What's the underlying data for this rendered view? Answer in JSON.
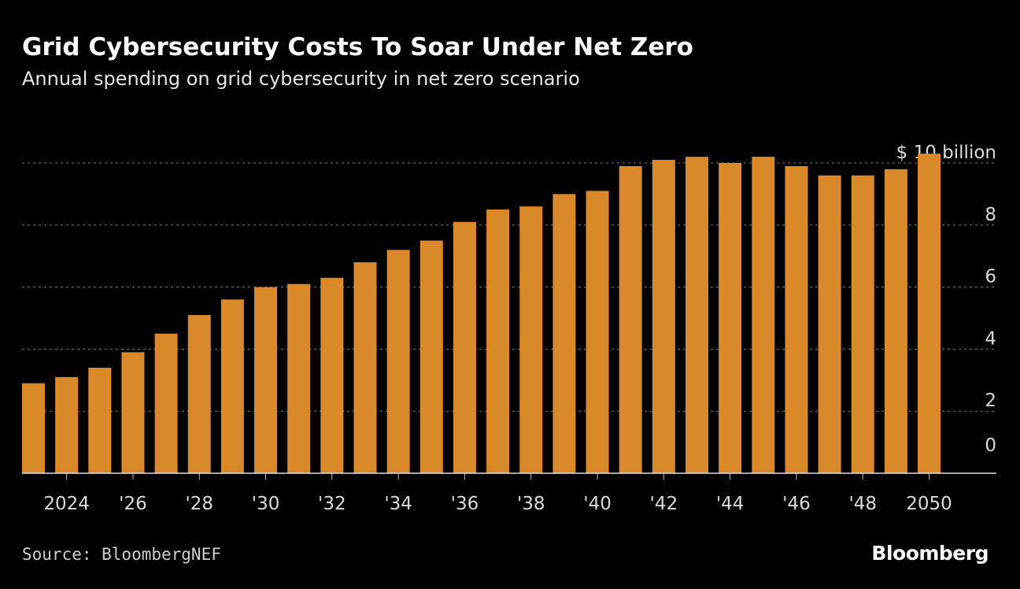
{
  "title": "Grid Cybersecurity Costs To Soar Under Net Zero",
  "subtitle": "Annual spending on grid cybersecurity in net zero scenario",
  "source": "Source: BloombergNEF",
  "logo": "Bloomberg",
  "colors": {
    "bar": "#d9892a",
    "background": "#000000",
    "grid": "#777777"
  },
  "chart_data": {
    "type": "bar",
    "title": "Grid Cybersecurity Costs To Soar Under Net Zero",
    "subtitle": "Annual spending on grid cybersecurity in net zero scenario",
    "ylabel": "",
    "unit_label": "$ 10 billion",
    "ylim": [
      0,
      10
    ],
    "yticks": [
      0,
      2,
      4,
      6,
      8,
      10
    ],
    "ytick_labels": [
      "0",
      "2",
      "4",
      "6",
      "8",
      "$ 10 billion"
    ],
    "grid": true,
    "categories": [
      2023,
      2024,
      2025,
      2026,
      2027,
      2028,
      2029,
      2030,
      2031,
      2032,
      2033,
      2034,
      2035,
      2036,
      2037,
      2038,
      2039,
      2040,
      2041,
      2042,
      2043,
      2044,
      2045,
      2046,
      2047,
      2048,
      2049,
      2050
    ],
    "xtick_labels": {
      "2024": "2024",
      "2026": "'26",
      "2028": "'28",
      "2030": "'30",
      "2032": "'32",
      "2034": "'34",
      "2036": "'36",
      "2038": "'38",
      "2040": "'40",
      "2042": "'42",
      "2044": "'44",
      "2046": "'46",
      "2048": "'48",
      "2050": "2050"
    },
    "values": [
      2.9,
      3.1,
      3.4,
      3.9,
      4.5,
      5.1,
      5.6,
      6.0,
      6.1,
      6.3,
      6.8,
      7.2,
      7.5,
      8.1,
      8.5,
      8.6,
      9.0,
      9.1,
      9.9,
      10.1,
      10.2,
      10.0,
      10.2,
      9.9,
      9.6,
      9.6,
      9.8,
      10.3
    ]
  }
}
